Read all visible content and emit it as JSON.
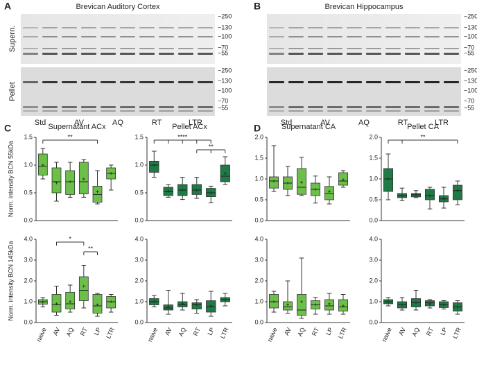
{
  "panel_letters": [
    "A",
    "B",
    "C",
    "D"
  ],
  "blots": [
    {
      "title": "Brevican Auditory Cortex",
      "row_labels": [
        "Supern.",
        "Pellet"
      ],
      "markers": [
        "~250",
        "~130",
        "~100",
        "~70",
        "~55"
      ],
      "lanes": [
        "Std",
        "AV",
        "AQ",
        "RT",
        "LTR"
      ]
    },
    {
      "title": "Brevican Hippocampus",
      "row_labels": [],
      "markers": [
        "~250",
        "~130",
        "~100",
        "~70",
        "~55"
      ],
      "lanes": [
        "Std",
        "AV",
        "AQ",
        "RT",
        "LTR"
      ]
    }
  ],
  "chart_data": [
    {
      "type": "box",
      "title": "Supernatant ACx",
      "ylabel": "Norm. intensity BCN 55kDa",
      "color": "#6cc04a",
      "ylim": [
        0,
        1.5
      ],
      "yticks": [
        {
          "value": 0,
          "label": "0.0"
        },
        0.5,
        {
          "value": 1,
          "label": "1.0"
        },
        1.5
      ],
      "boxes": [
        {
          "min": 0.75,
          "q1": 0.82,
          "median": 0.98,
          "q3": 1.2,
          "max": 1.3,
          "mean": 1.0
        },
        {
          "min": 0.35,
          "q1": 0.5,
          "median": 0.7,
          "q3": 0.95,
          "max": 1.05,
          "mean": 0.68
        },
        {
          "min": 0.42,
          "q1": 0.47,
          "median": 0.7,
          "q3": 0.9,
          "max": 1.05,
          "mean": 0.7
        },
        {
          "min": 0.42,
          "q1": 0.48,
          "median": 0.7,
          "q3": 1.05,
          "max": 1.1,
          "mean": 0.75
        },
        {
          "min": 0.3,
          "q1": 0.33,
          "median": 0.47,
          "q3": 0.62,
          "max": 0.9,
          "mean": 0.52
        },
        {
          "min": 0.55,
          "q1": 0.75,
          "median": 0.85,
          "q3": 0.95,
          "max": 1.0,
          "mean": 0.85
        }
      ],
      "annotations": [
        {
          "text": "**",
          "from": 0,
          "to": [
            4
          ]
        }
      ]
    },
    {
      "type": "box",
      "title": "Pellet ACx",
      "color": "#1f7a45",
      "ylim": [
        0,
        1.5
      ],
      "yticks": [
        {
          "value": 0,
          "label": "0.0"
        },
        0.5,
        {
          "value": 1,
          "label": "1.0"
        },
        1.5
      ],
      "boxes": [
        {
          "min": 0.78,
          "q1": 0.87,
          "median": 1.0,
          "q3": 1.07,
          "max": 1.25,
          "mean": 1.0
        },
        {
          "min": 0.42,
          "q1": 0.45,
          "median": 0.52,
          "q3": 0.6,
          "max": 0.65,
          "mean": 0.53
        },
        {
          "min": 0.38,
          "q1": 0.45,
          "median": 0.55,
          "q3": 0.65,
          "max": 0.78,
          "mean": 0.55
        },
        {
          "min": 0.4,
          "q1": 0.47,
          "median": 0.55,
          "q3": 0.65,
          "max": 0.78,
          "mean": 0.55
        },
        {
          "min": 0.32,
          "q1": 0.43,
          "median": 0.5,
          "q3": 0.58,
          "max": 0.62,
          "mean": 0.5
        },
        {
          "min": 0.65,
          "q1": 0.7,
          "median": 0.8,
          "q3": 1.0,
          "max": 1.15,
          "mean": 0.85
        }
      ],
      "annotations": [
        {
          "text": "****",
          "from": 0,
          "to": [
            1,
            2,
            3,
            4
          ]
        },
        {
          "text": "**",
          "from": 5,
          "to": [
            3,
            4
          ]
        }
      ]
    },
    {
      "type": "box",
      "title": "Supernatant CA",
      "color": "#6cc04a",
      "ylim": [
        0,
        2
      ],
      "yticks": [
        {
          "value": 0,
          "label": "0.0"
        },
        0.5,
        {
          "value": 1,
          "label": "1.0"
        },
        1.5,
        {
          "value": 2,
          "label": "2.0"
        }
      ],
      "boxes": [
        {
          "min": 0.7,
          "q1": 0.78,
          "median": 0.95,
          "q3": 1.05,
          "max": 1.8,
          "mean": 0.95
        },
        {
          "min": 0.6,
          "q1": 0.75,
          "median": 0.9,
          "q3": 1.05,
          "max": 1.3,
          "mean": 0.9
        },
        {
          "min": 0.6,
          "q1": 0.63,
          "median": 0.8,
          "q3": 1.25,
          "max": 1.52,
          "mean": 0.92
        },
        {
          "min": 0.42,
          "q1": 0.6,
          "median": 0.75,
          "q3": 0.9,
          "max": 1.07,
          "mean": 0.75
        },
        {
          "min": 0.4,
          "q1": 0.5,
          "median": 0.65,
          "q3": 0.82,
          "max": 1.05,
          "mean": 0.7
        },
        {
          "min": 0.8,
          "q1": 0.85,
          "median": 0.95,
          "q3": 1.15,
          "max": 1.2,
          "mean": 0.98
        }
      ],
      "annotations": []
    },
    {
      "type": "box",
      "title": "Pellet CA",
      "color": "#1f7a45",
      "ylim": [
        0,
        2
      ],
      "yticks": [
        {
          "value": 0,
          "label": "0.0"
        },
        0.5,
        {
          "value": 1,
          "label": "1.0"
        },
        1.5,
        {
          "value": 2,
          "label": "2.0"
        }
      ],
      "boxes": [
        {
          "min": 0.5,
          "q1": 0.7,
          "median": 1.0,
          "q3": 1.25,
          "max": 1.6,
          "mean": 1.0
        },
        {
          "min": 0.48,
          "q1": 0.55,
          "median": 0.6,
          "q3": 0.65,
          "max": 0.78,
          "mean": 0.6
        },
        {
          "min": 0.55,
          "q1": 0.57,
          "median": 0.62,
          "q3": 0.65,
          "max": 0.72,
          "mean": 0.62
        },
        {
          "min": 0.28,
          "q1": 0.5,
          "median": 0.6,
          "q3": 0.75,
          "max": 0.8,
          "mean": 0.6
        },
        {
          "min": 0.3,
          "q1": 0.45,
          "median": 0.52,
          "q3": 0.6,
          "max": 0.8,
          "mean": 0.53
        },
        {
          "min": 0.38,
          "q1": 0.5,
          "median": 0.72,
          "q3": 0.85,
          "max": 0.95,
          "mean": 0.72
        }
      ],
      "annotations": [
        {
          "text": "**",
          "from": 0,
          "to": [
            1,
            5
          ]
        }
      ]
    },
    {
      "type": "box",
      "ylabel": "Norm. intensity BCN 145kDa",
      "color": "#6cc04a",
      "ylim": [
        0,
        4
      ],
      "yticks": [
        {
          "value": 0,
          "label": "0.0"
        },
        {
          "value": 1,
          "label": "1.0"
        },
        {
          "value": 2,
          "label": "2.0"
        },
        {
          "value": 3,
          "label": "3.0"
        },
        {
          "value": 4,
          "label": "4.0"
        }
      ],
      "categories": [
        "naive",
        "AV",
        "AQ",
        "RT",
        "LP",
        "LTR"
      ],
      "boxes": [
        {
          "min": 0.75,
          "q1": 0.88,
          "median": 1.0,
          "q3": 1.1,
          "max": 1.2,
          "mean": 0.98
        },
        {
          "min": 0.35,
          "q1": 0.5,
          "median": 0.85,
          "q3": 1.35,
          "max": 1.75,
          "mean": 0.9
        },
        {
          "min": 0.5,
          "q1": 0.65,
          "median": 0.9,
          "q3": 1.45,
          "max": 1.8,
          "mean": 1.0
        },
        {
          "min": 0.7,
          "q1": 1.05,
          "median": 1.55,
          "q3": 2.2,
          "max": 2.75,
          "mean": 1.75
        },
        {
          "min": 0.3,
          "q1": 0.45,
          "median": 0.8,
          "q3": 1.35,
          "max": 1.4,
          "mean": 0.85
        },
        {
          "min": 0.5,
          "q1": 0.7,
          "median": 1.0,
          "q3": 1.25,
          "max": 1.35,
          "mean": 1.0
        }
      ],
      "annotations": [
        {
          "text": "*",
          "from": 1,
          "to": [
            3
          ]
        },
        {
          "text": "**",
          "from": 3,
          "to": [
            4
          ]
        }
      ]
    },
    {
      "type": "box",
      "color": "#1f7a45",
      "ylim": [
        0,
        4
      ],
      "yticks": [
        {
          "value": 0,
          "label": "0.0"
        },
        {
          "value": 1,
          "label": "1.0"
        },
        {
          "value": 2,
          "label": "2.0"
        },
        {
          "value": 3,
          "label": "3.0"
        },
        {
          "value": 4,
          "label": "4.0"
        }
      ],
      "categories": [
        "naive",
        "AV",
        "AQ",
        "RT",
        "LP",
        "LTR"
      ],
      "boxes": [
        {
          "min": 0.75,
          "q1": 0.85,
          "median": 1.0,
          "q3": 1.15,
          "max": 1.3,
          "mean": 1.0
        },
        {
          "min": 0.4,
          "q1": 0.6,
          "median": 0.7,
          "q3": 0.85,
          "max": 1.55,
          "mean": 0.75
        },
        {
          "min": 0.6,
          "q1": 0.75,
          "median": 0.85,
          "q3": 1.0,
          "max": 1.4,
          "mean": 0.9
        },
        {
          "min": 0.45,
          "q1": 0.65,
          "median": 0.85,
          "q3": 0.95,
          "max": 1.1,
          "mean": 0.85
        },
        {
          "min": 0.3,
          "q1": 0.5,
          "median": 0.75,
          "q3": 1.05,
          "max": 1.5,
          "mean": 0.8
        },
        {
          "min": 0.8,
          "q1": 1.0,
          "median": 1.1,
          "q3": 1.2,
          "max": 1.4,
          "mean": 1.1
        }
      ],
      "annotations": []
    },
    {
      "type": "box",
      "color": "#6cc04a",
      "ylim": [
        0,
        4
      ],
      "yticks": [
        {
          "value": 0,
          "label": "0.0"
        },
        {
          "value": 1,
          "label": "1.0"
        },
        {
          "value": 2,
          "label": "2.0"
        },
        {
          "value": 3,
          "label": "3.0"
        },
        {
          "value": 4,
          "label": "4.0"
        }
      ],
      "categories": [
        "naive",
        "AV",
        "AQ",
        "RT",
        "LP",
        "LTR"
      ],
      "boxes": [
        {
          "min": 0.5,
          "q1": 0.7,
          "median": 1.0,
          "q3": 1.35,
          "max": 1.5,
          "mean": 1.0
        },
        {
          "min": 0.45,
          "q1": 0.6,
          "median": 0.75,
          "q3": 1.0,
          "max": 2.0,
          "mean": 0.85
        },
        {
          "min": 0.2,
          "q1": 0.35,
          "median": 0.6,
          "q3": 1.35,
          "max": 3.1,
          "mean": 1.0
        },
        {
          "min": 0.4,
          "q1": 0.65,
          "median": 0.85,
          "q3": 1.05,
          "max": 1.2,
          "mean": 0.85
        },
        {
          "min": 0.4,
          "q1": 0.6,
          "median": 0.8,
          "q3": 1.1,
          "max": 1.4,
          "mean": 0.9
        },
        {
          "min": 0.4,
          "q1": 0.55,
          "median": 0.75,
          "q3": 1.1,
          "max": 1.35,
          "mean": 0.8
        }
      ],
      "annotations": []
    },
    {
      "type": "box",
      "color": "#1f7a45",
      "ylim": [
        0,
        4
      ],
      "yticks": [
        {
          "value": 0,
          "label": "0.0"
        },
        {
          "value": 1,
          "label": "1.0"
        },
        {
          "value": 2,
          "label": "2.0"
        },
        {
          "value": 3,
          "label": "3.0"
        },
        {
          "value": 4,
          "label": "4.0"
        }
      ],
      "categories": [
        "naive",
        "AV",
        "AQ",
        "RT",
        "LP",
        "LTR"
      ],
      "boxes": [
        {
          "min": 0.8,
          "q1": 0.9,
          "median": 1.0,
          "q3": 1.1,
          "max": 1.2,
          "mean": 1.0
        },
        {
          "min": 0.6,
          "q1": 0.7,
          "median": 0.85,
          "q3": 1.0,
          "max": 1.2,
          "mean": 0.85
        },
        {
          "min": 0.6,
          "q1": 0.75,
          "median": 0.95,
          "q3": 1.15,
          "max": 1.55,
          "mean": 0.95
        },
        {
          "min": 0.7,
          "q1": 0.8,
          "median": 0.95,
          "q3": 1.05,
          "max": 1.1,
          "mean": 0.9
        },
        {
          "min": 0.65,
          "q1": 0.72,
          "median": 0.85,
          "q3": 1.0,
          "max": 1.05,
          "mean": 0.85
        },
        {
          "min": 0.4,
          "q1": 0.55,
          "median": 0.75,
          "q3": 0.95,
          "max": 1.05,
          "mean": 0.75
        }
      ],
      "annotations": []
    }
  ]
}
